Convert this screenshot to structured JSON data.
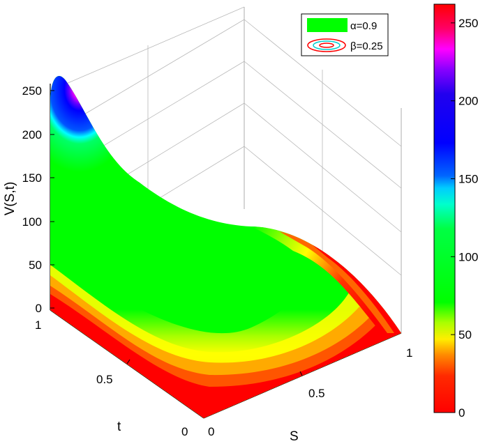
{
  "chart_data": {
    "type": "surface",
    "zlabel": "V(S,t)",
    "xlabel": "S",
    "ylabel": "t",
    "xlim": [
      0,
      1
    ],
    "ylim": [
      0,
      1
    ],
    "zlim": [
      0,
      260
    ],
    "x_ticks": [
      "0",
      "0.5",
      "1"
    ],
    "y_ticks": [
      "0",
      "0.5",
      "1"
    ],
    "z_ticks": [
      "0",
      "50",
      "100",
      "150",
      "200",
      "250"
    ],
    "surface_samples": {
      "S": [
        0,
        0.25,
        0.5,
        0.75,
        1
      ],
      "t": [
        0,
        0.25,
        0.5,
        0.75,
        1
      ],
      "V_at_S0": [
        0,
        20,
        60,
        130,
        262
      ],
      "V_at_t1": [
        262,
        105,
        92,
        70,
        0
      ],
      "V_at_t0": [
        0,
        0,
        0,
        0,
        0
      ]
    },
    "legend": [
      {
        "label": "α=0.9",
        "symbol": "filled-green-rect",
        "color": "#00ff00"
      },
      {
        "label": "β=0.25",
        "symbol": "contour-ellipses",
        "color": "#ff0000"
      }
    ],
    "legend_position": "top-right",
    "colorbar": {
      "ticks": [
        "0",
        "50",
        "100",
        "150",
        "200",
        "250"
      ],
      "range": [
        0,
        262
      ]
    },
    "colormap": [
      "#ff0000",
      "#ff6600",
      "#ffaa00",
      "#ffff00",
      "#aaff00",
      "#00ff00",
      "#00ff00",
      "#00ffcc",
      "#00ffff",
      "#0066ff",
      "#0000dd",
      "#0000ff",
      "#6600ff",
      "#ff00ff",
      "#ff0044",
      "#ff0000"
    ],
    "grid": true
  }
}
